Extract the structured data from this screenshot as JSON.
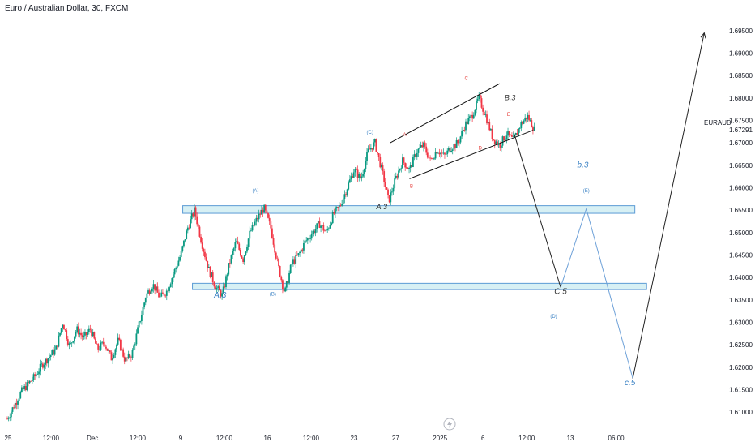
{
  "header": {
    "symbol_title": "Euro / Australian Dollar, 30, FXCM",
    "ticker_tag": "EURAUD"
  },
  "colors": {
    "up": "#089981",
    "down": "#f23645",
    "zone_fill": "#d7f0f4",
    "zone_border": "#5b9bd5",
    "projection_black": "#222222",
    "projection_blue": "#6ea1d8",
    "wave_red": "#e53935",
    "wave_blue": "#3b82c4",
    "wave_dark": "#333333"
  },
  "chart_data": {
    "type": "candlestick",
    "symbol": "EURAUD",
    "timeframe": "30",
    "ylim": [
      1.6075,
      1.6975
    ],
    "y_ticks": [
      "1.69500",
      "1.69000",
      "1.68500",
      "1.68000",
      "1.67500",
      "1.67291",
      "1.67000",
      "1.66500",
      "1.66000",
      "1.65500",
      "1.65000",
      "1.64500",
      "1.64000",
      "1.63500",
      "1.63000",
      "1.62500",
      "1.62000",
      "1.61500",
      "1.61000"
    ],
    "x_ticks": [
      "25",
      "12:00",
      "Dec",
      "12:00",
      "9",
      "12:00",
      "16",
      "12:00",
      "23",
      "27",
      "2025",
      "6",
      "12:00",
      "13",
      "06:00"
    ],
    "price_path": [
      [
        0,
        1.6085
      ],
      [
        2,
        1.6145
      ],
      [
        4,
        1.618
      ],
      [
        5,
        1.6205
      ],
      [
        7,
        1.624
      ],
      [
        8,
        1.63
      ],
      [
        9,
        1.6245
      ],
      [
        10,
        1.6285
      ],
      [
        11,
        1.6265
      ],
      [
        12,
        1.6285
      ],
      [
        13,
        1.624
      ],
      [
        14,
        1.6255
      ],
      [
        15,
        1.622
      ],
      [
        16,
        1.626
      ],
      [
        17,
        1.6215
      ],
      [
        18,
        1.623
      ],
      [
        20,
        1.636
      ],
      [
        21,
        1.6385
      ],
      [
        22,
        1.6355
      ],
      [
        23,
        1.637
      ],
      [
        24,
        1.641
      ],
      [
        25,
        1.645
      ],
      [
        26,
        1.651
      ],
      [
        27,
        1.655
      ],
      [
        28,
        1.648
      ],
      [
        29,
        1.642
      ],
      [
        30,
        1.638
      ],
      [
        31,
        1.636
      ],
      [
        32,
        1.643
      ],
      [
        33,
        1.648
      ],
      [
        34,
        1.644
      ],
      [
        35,
        1.65
      ],
      [
        36,
        1.653
      ],
      [
        37,
        1.6555
      ],
      [
        38,
        1.651
      ],
      [
        39,
        1.643
      ],
      [
        40,
        1.6365
      ],
      [
        41,
        1.643
      ],
      [
        42,
        1.645
      ],
      [
        43,
        1.648
      ],
      [
        44,
        1.65
      ],
      [
        45,
        1.652
      ],
      [
        46,
        1.65
      ],
      [
        47,
        1.654
      ],
      [
        48,
        1.656
      ],
      [
        49,
        1.66
      ],
      [
        50,
        1.664
      ],
      [
        51,
        1.662
      ],
      [
        52,
        1.668
      ],
      [
        53,
        1.67
      ],
      [
        54,
        1.664
      ],
      [
        55,
        1.657
      ],
      [
        56,
        1.662
      ],
      [
        57,
        1.666
      ],
      [
        58,
        1.664
      ],
      [
        59,
        1.668
      ],
      [
        60,
        1.6695
      ],
      [
        61,
        1.666
      ],
      [
        62,
        1.6685
      ],
      [
        63,
        1.667
      ],
      [
        64,
        1.669
      ],
      [
        65,
        1.67
      ],
      [
        66,
        1.674
      ],
      [
        67,
        1.676
      ],
      [
        68,
        1.68
      ],
      [
        69,
        1.676
      ],
      [
        70,
        1.671
      ],
      [
        71,
        1.6695
      ],
      [
        72,
        1.672
      ],
      [
        73,
        1.6705
      ],
      [
        74,
        1.674
      ],
      [
        75,
        1.676
      ],
      [
        76,
        1.673
      ]
    ],
    "zones": [
      {
        "label": "A.3",
        "top": 1.656,
        "bottom": 1.6543,
        "x_start": 25.3,
        "x_end": 90.5
      },
      {
        "label": "",
        "top": 1.6387,
        "bottom": 1.6373,
        "x_start": 26.7,
        "x_end": 92.2
      }
    ],
    "channel_lines": [
      {
        "p1": [
          55.2,
          1.67
        ],
        "p2": [
          71.0,
          1.6832
        ]
      },
      {
        "p1": [
          58.0,
          1.662
        ],
        "p2": [
          75.8,
          1.6728
        ]
      }
    ],
    "projection_black": [
      [
        73.0,
        1.6725
      ],
      [
        79.8,
        1.6378
      ]
    ],
    "projection_blue": [
      [
        79.8,
        1.6378
      ],
      [
        83.5,
        1.6553
      ],
      [
        90.2,
        1.6175
      ]
    ],
    "projection_black_up": [
      [
        90.2,
        1.6175
      ],
      [
        100.5,
        1.6945
      ]
    ],
    "wave_labels": [
      {
        "text": "(A)",
        "x": 35.8,
        "y": 1.659,
        "color": "blue",
        "size": 6
      },
      {
        "text": "A.3",
        "x": 30.7,
        "y": 1.6355,
        "color": "blue",
        "size": 10,
        "italic": true
      },
      {
        "text": "(B)",
        "x": 38.3,
        "y": 1.636,
        "color": "blue",
        "size": 6
      },
      {
        "text": "(C)",
        "x": 52.3,
        "y": 1.672,
        "color": "blue",
        "size": 6
      },
      {
        "text": "A",
        "x": 57.3,
        "y": 1.6715,
        "color": "red",
        "size": 6
      },
      {
        "text": "B",
        "x": 58.3,
        "y": 1.66,
        "color": "red",
        "size": 6
      },
      {
        "text": "C",
        "x": 66.2,
        "y": 1.684,
        "color": "red",
        "size": 6
      },
      {
        "text": "D",
        "x": 68.2,
        "y": 1.6685,
        "color": "red",
        "size": 6
      },
      {
        "text": "E",
        "x": 72.3,
        "y": 1.676,
        "color": "red",
        "size": 6
      },
      {
        "text": "B.3",
        "x": 72.5,
        "y": 1.6795,
        "color": "dark",
        "size": 9,
        "italic": true
      },
      {
        "text": "A.3",
        "x": 54.0,
        "y": 1.6552,
        "color": "dark",
        "size": 9,
        "italic": true
      },
      {
        "text": "b.3",
        "x": 83.0,
        "y": 1.6645,
        "color": "blue",
        "size": 10,
        "italic": true
      },
      {
        "text": "(E)",
        "x": 83.5,
        "y": 1.659,
        "color": "blue",
        "size": 6
      },
      {
        "text": "C.5",
        "x": 79.8,
        "y": 1.6363,
        "color": "dark",
        "size": 10,
        "italic": true
      },
      {
        "text": "(D)",
        "x": 78.8,
        "y": 1.631,
        "color": "blue",
        "size": 6
      },
      {
        "text": "c.5",
        "x": 89.8,
        "y": 1.616,
        "color": "blue",
        "size": 10,
        "italic": true
      }
    ]
  }
}
